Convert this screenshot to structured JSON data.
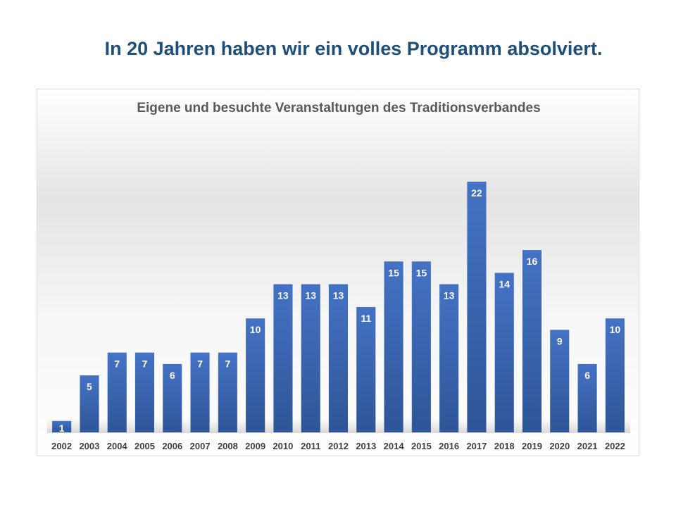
{
  "slide": {
    "title": "In 20 Jahren haben wir ein volles Programm absolviert."
  },
  "colors": {
    "bar_top": "#4472c4",
    "bar_bottom": "#2f5597",
    "slide_title": "#1f4e79",
    "chart_title": "#595959",
    "data_label": "#ffffff",
    "tick_label": "#404040"
  },
  "chart_data": {
    "type": "bar",
    "title": "Eigene und besuchte Veranstaltungen des Traditionsverbandes",
    "xlabel": "",
    "ylabel": "",
    "categories": [
      "2002",
      "2003",
      "2004",
      "2005",
      "2006",
      "2007",
      "2008",
      "2009",
      "2010",
      "2011",
      "2012",
      "2013",
      "2014",
      "2015",
      "2016",
      "2017",
      "2018",
      "2019",
      "2020",
      "2021",
      "2022"
    ],
    "values": [
      1,
      5,
      7,
      7,
      6,
      7,
      7,
      10,
      13,
      13,
      13,
      11,
      15,
      15,
      13,
      22,
      14,
      16,
      9,
      6,
      10
    ],
    "ylim": [
      0,
      22
    ],
    "grid": false,
    "legend": "none",
    "data_labels": true
  }
}
